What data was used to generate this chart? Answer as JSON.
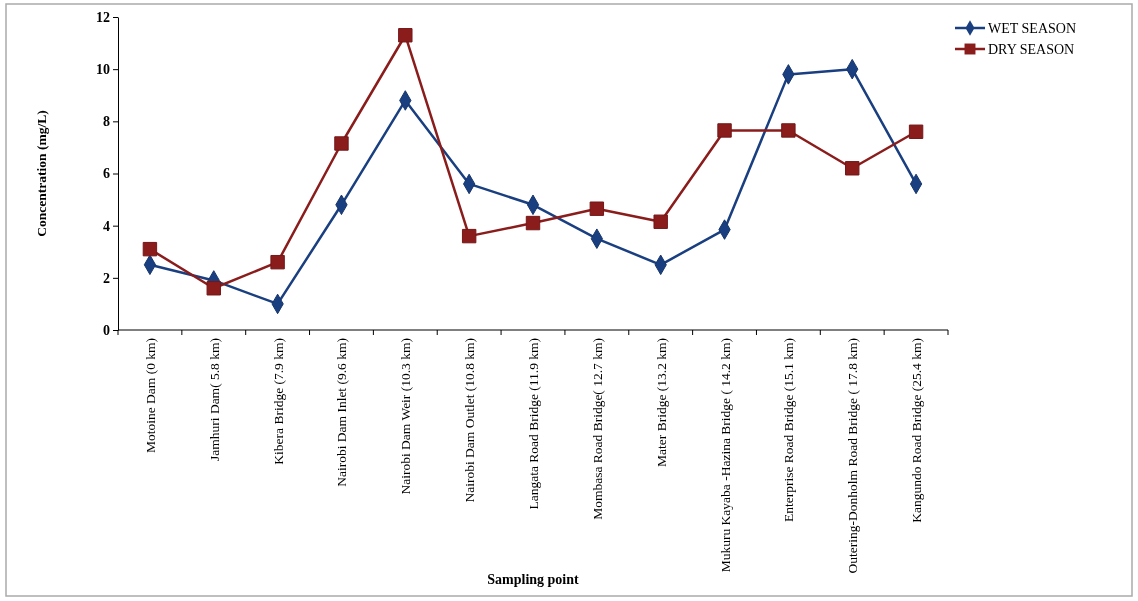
{
  "chart_data": {
    "type": "line",
    "xlabel": "Sampling point",
    "ylabel": "Concentration (mg/L)",
    "categories": [
      "Motoine Dam (0 km)",
      "Jamhuri Dam( 5.8 km)",
      "Kibera Bridge (7.9 km)",
      "Nairobi Dam Inlet (9.6 km)",
      "Nairobi Dam Weir (10.3 km)",
      "Nairobi Dam Outlet (10.8 km)",
      "Langata Road Bridge (11.9 km)",
      "Mombasa Road Bridge( 12.7 km)",
      "Mater Bridge (13.2 km)",
      "Mukuru Kayaba -Hazina Bridge ( 14.2 km)",
      "Enterprise Road Bridge (15.1 km)",
      "Outering-Donholm Road Bridge ( 17.8 km)",
      "Kangundo Road Bridge (25.4 km)"
    ],
    "series": [
      {
        "name": "WET SEASON",
        "color": "#1a3f80",
        "marker": "diamond",
        "values": [
          2.5,
          1.9,
          1.0,
          4.8,
          8.8,
          5.6,
          4.8,
          3.5,
          2.5,
          3.85,
          9.8,
          10.0,
          5.6
        ]
      },
      {
        "name": "DRY SEASON",
        "color": "#8b1c1c",
        "marker": "square",
        "values": [
          3.1,
          1.6,
          2.6,
          7.15,
          11.3,
          3.6,
          4.1,
          4.65,
          4.15,
          7.65,
          7.65,
          6.2,
          7.6
        ]
      }
    ],
    "ylim": [
      0,
      12
    ],
    "yticks": [
      0,
      2,
      4,
      6,
      8,
      10,
      12
    ],
    "grid": false,
    "legend": "top right",
    "line_style": "solid"
  }
}
